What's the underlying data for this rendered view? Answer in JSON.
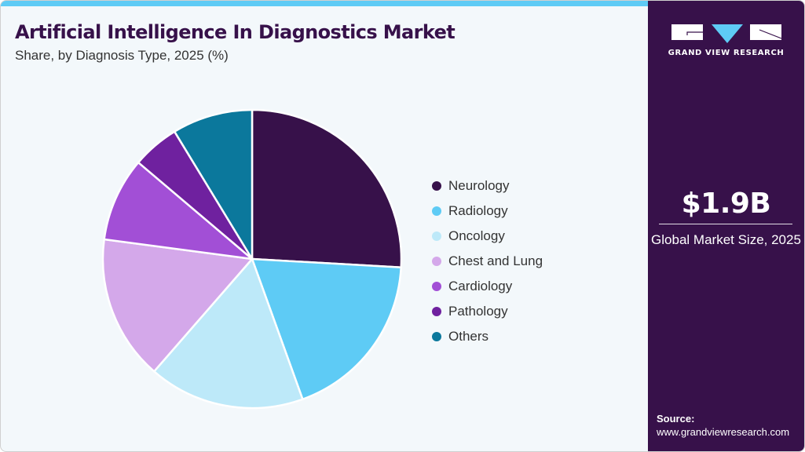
{
  "header": {
    "title": "Artificial Intelligence In Diagnostics Market",
    "subtitle": "Share, by Diagnosis Type, 2025 (%)"
  },
  "colors": {
    "accent_bar": "#5ecbf5",
    "side_panel": "#37114a",
    "background": "#f3f8fb",
    "title": "#37114a"
  },
  "sidebar": {
    "logo_icon": "gvr-logo-icon",
    "brand": "GRAND VIEW RESEARCH",
    "market_value": "$1.9B",
    "market_label": "Global Market Size, 2025",
    "source_label": "Source:",
    "source_url": "www.grandviewresearch.com"
  },
  "legend": [
    {
      "label": "Neurology",
      "color": "#37114a"
    },
    {
      "label": "Radiology",
      "color": "#5ecbf5"
    },
    {
      "label": "Oncology",
      "color": "#bde9f9"
    },
    {
      "label": "Chest and Lung",
      "color": "#d4a8ea"
    },
    {
      "label": "Cardiology",
      "color": "#a24fd6"
    },
    {
      "label": "Pathology",
      "color": "#6f219f"
    },
    {
      "label": "Others",
      "color": "#0b789c"
    }
  ],
  "chart_data": {
    "type": "pie",
    "title": "Artificial Intelligence In Diagnostics Market",
    "subtitle": "Share, by Diagnosis Type, 2025 (%)",
    "categories": [
      "Neurology",
      "Radiology",
      "Oncology",
      "Chest and Lung",
      "Cardiology",
      "Pathology",
      "Others"
    ],
    "values": [
      25.9,
      18.6,
      16.9,
      15.7,
      9.1,
      5.1,
      8.7
    ],
    "colors": [
      "#37114a",
      "#5ecbf5",
      "#bde9f9",
      "#d4a8ea",
      "#a24fd6",
      "#6f219f",
      "#0b789c"
    ],
    "start_angle_deg": 0,
    "direction": "clockwise",
    "legend_position": "right",
    "data_labels": false
  }
}
